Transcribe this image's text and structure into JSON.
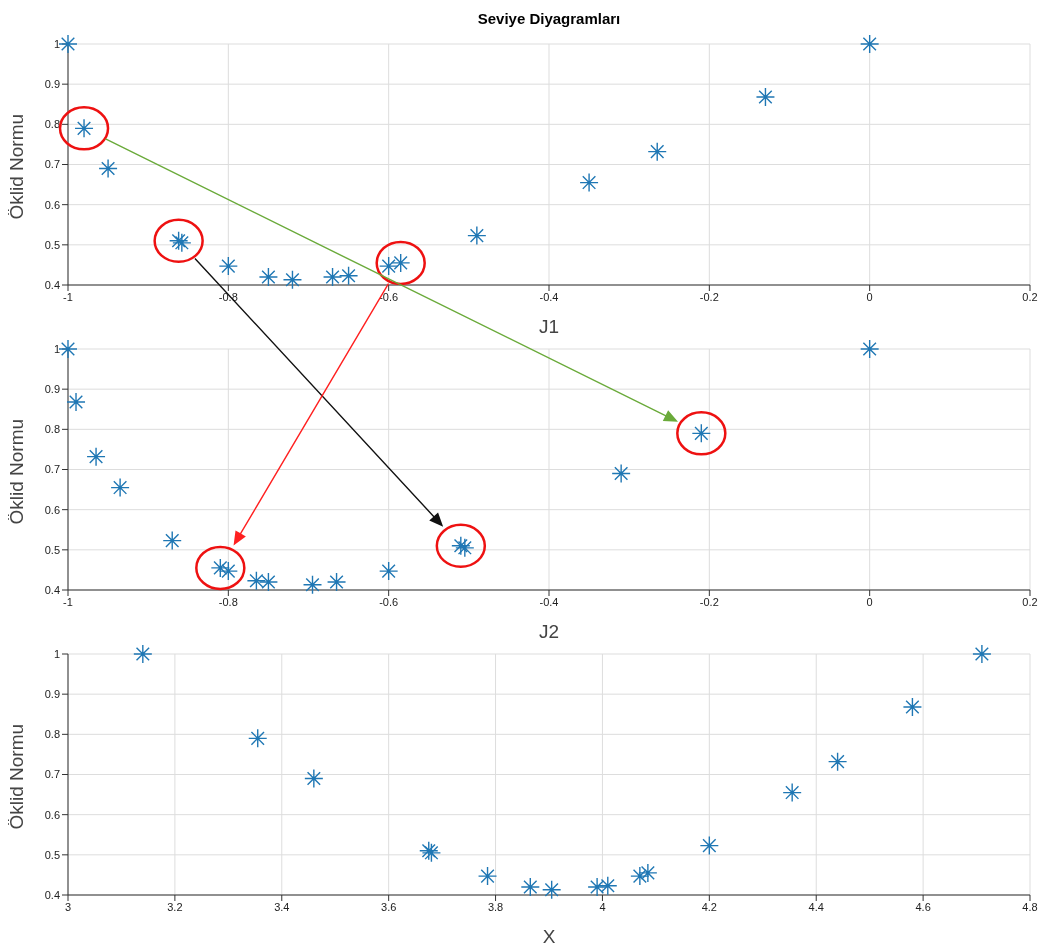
{
  "chart_data": [
    {
      "type": "scatter",
      "title": "Seviye Diyagramları",
      "xlabel": "J1",
      "ylabel": "Öklid Normu",
      "xlim": [
        -1,
        0.2
      ],
      "xticks": [
        -1,
        -0.8,
        -0.6,
        -0.4,
        -0.2,
        0,
        0.2
      ],
      "ylim": [
        0.4,
        1
      ],
      "yticks": [
        0.4,
        0.5,
        0.6,
        0.7,
        0.8,
        0.9,
        1
      ],
      "grid": true,
      "marker": "cross",
      "series": [
        {
          "color": "#1f77b4",
          "x": [
            -1,
            -0.98,
            -0.95,
            -0.862,
            -0.858,
            -0.8,
            -0.75,
            -0.72,
            -0.67,
            -0.65,
            -0.6,
            -0.585,
            -0.49,
            -0.35,
            -0.265,
            -0.13,
            0
          ],
          "values": [
            1,
            0.79,
            0.69,
            0.51,
            0.505,
            0.447,
            0.42,
            0.413,
            0.42,
            0.423,
            0.447,
            0.455,
            0.523,
            0.655,
            0.732,
            0.868,
            1
          ]
        }
      ]
    },
    {
      "type": "scatter",
      "xlabel": "J2",
      "ylabel": "Öklid Normu",
      "xlim": [
        -1,
        0.2
      ],
      "xticks": [
        -1,
        -0.8,
        -0.6,
        -0.4,
        -0.2,
        0,
        0.2
      ],
      "ylim": [
        0.4,
        1
      ],
      "yticks": [
        0.4,
        0.5,
        0.6,
        0.7,
        0.8,
        0.9,
        1
      ],
      "grid": true,
      "marker": "cross",
      "series": [
        {
          "color": "#1f77b4",
          "x": [
            -1,
            -0.99,
            -0.965,
            -0.935,
            -0.87,
            -0.81,
            -0.8,
            -0.765,
            -0.75,
            -0.695,
            -0.665,
            -0.6,
            -0.51,
            -0.505,
            -0.31,
            -0.21,
            0
          ],
          "values": [
            1,
            0.868,
            0.732,
            0.655,
            0.523,
            0.455,
            0.447,
            0.423,
            0.42,
            0.413,
            0.42,
            0.447,
            0.51,
            0.505,
            0.69,
            0.79,
            1
          ]
        }
      ]
    },
    {
      "type": "scatter",
      "xlabel": "X",
      "ylabel": "Öklid Normu",
      "xlim": [
        3,
        4.8
      ],
      "xticks": [
        3,
        3.2,
        3.4,
        3.6,
        3.8,
        4,
        4.2,
        4.4,
        4.6,
        4.8
      ],
      "ylim": [
        0.4,
        1
      ],
      "yticks": [
        0.4,
        0.5,
        0.6,
        0.7,
        0.8,
        0.9,
        1
      ],
      "grid": true,
      "marker": "cross",
      "series": [
        {
          "color": "#1f77b4",
          "x": [
            3.14,
            3.355,
            3.46,
            3.675,
            3.68,
            3.785,
            3.865,
            3.905,
            3.99,
            4.01,
            4.07,
            4.085,
            4.2,
            4.355,
            4.44,
            4.58,
            4.71
          ],
          "values": [
            1,
            0.79,
            0.69,
            0.51,
            0.505,
            0.447,
            0.42,
            0.413,
            0.42,
            0.423,
            0.447,
            0.455,
            0.523,
            0.655,
            0.732,
            0.868,
            1
          ]
        }
      ]
    }
  ]
}
